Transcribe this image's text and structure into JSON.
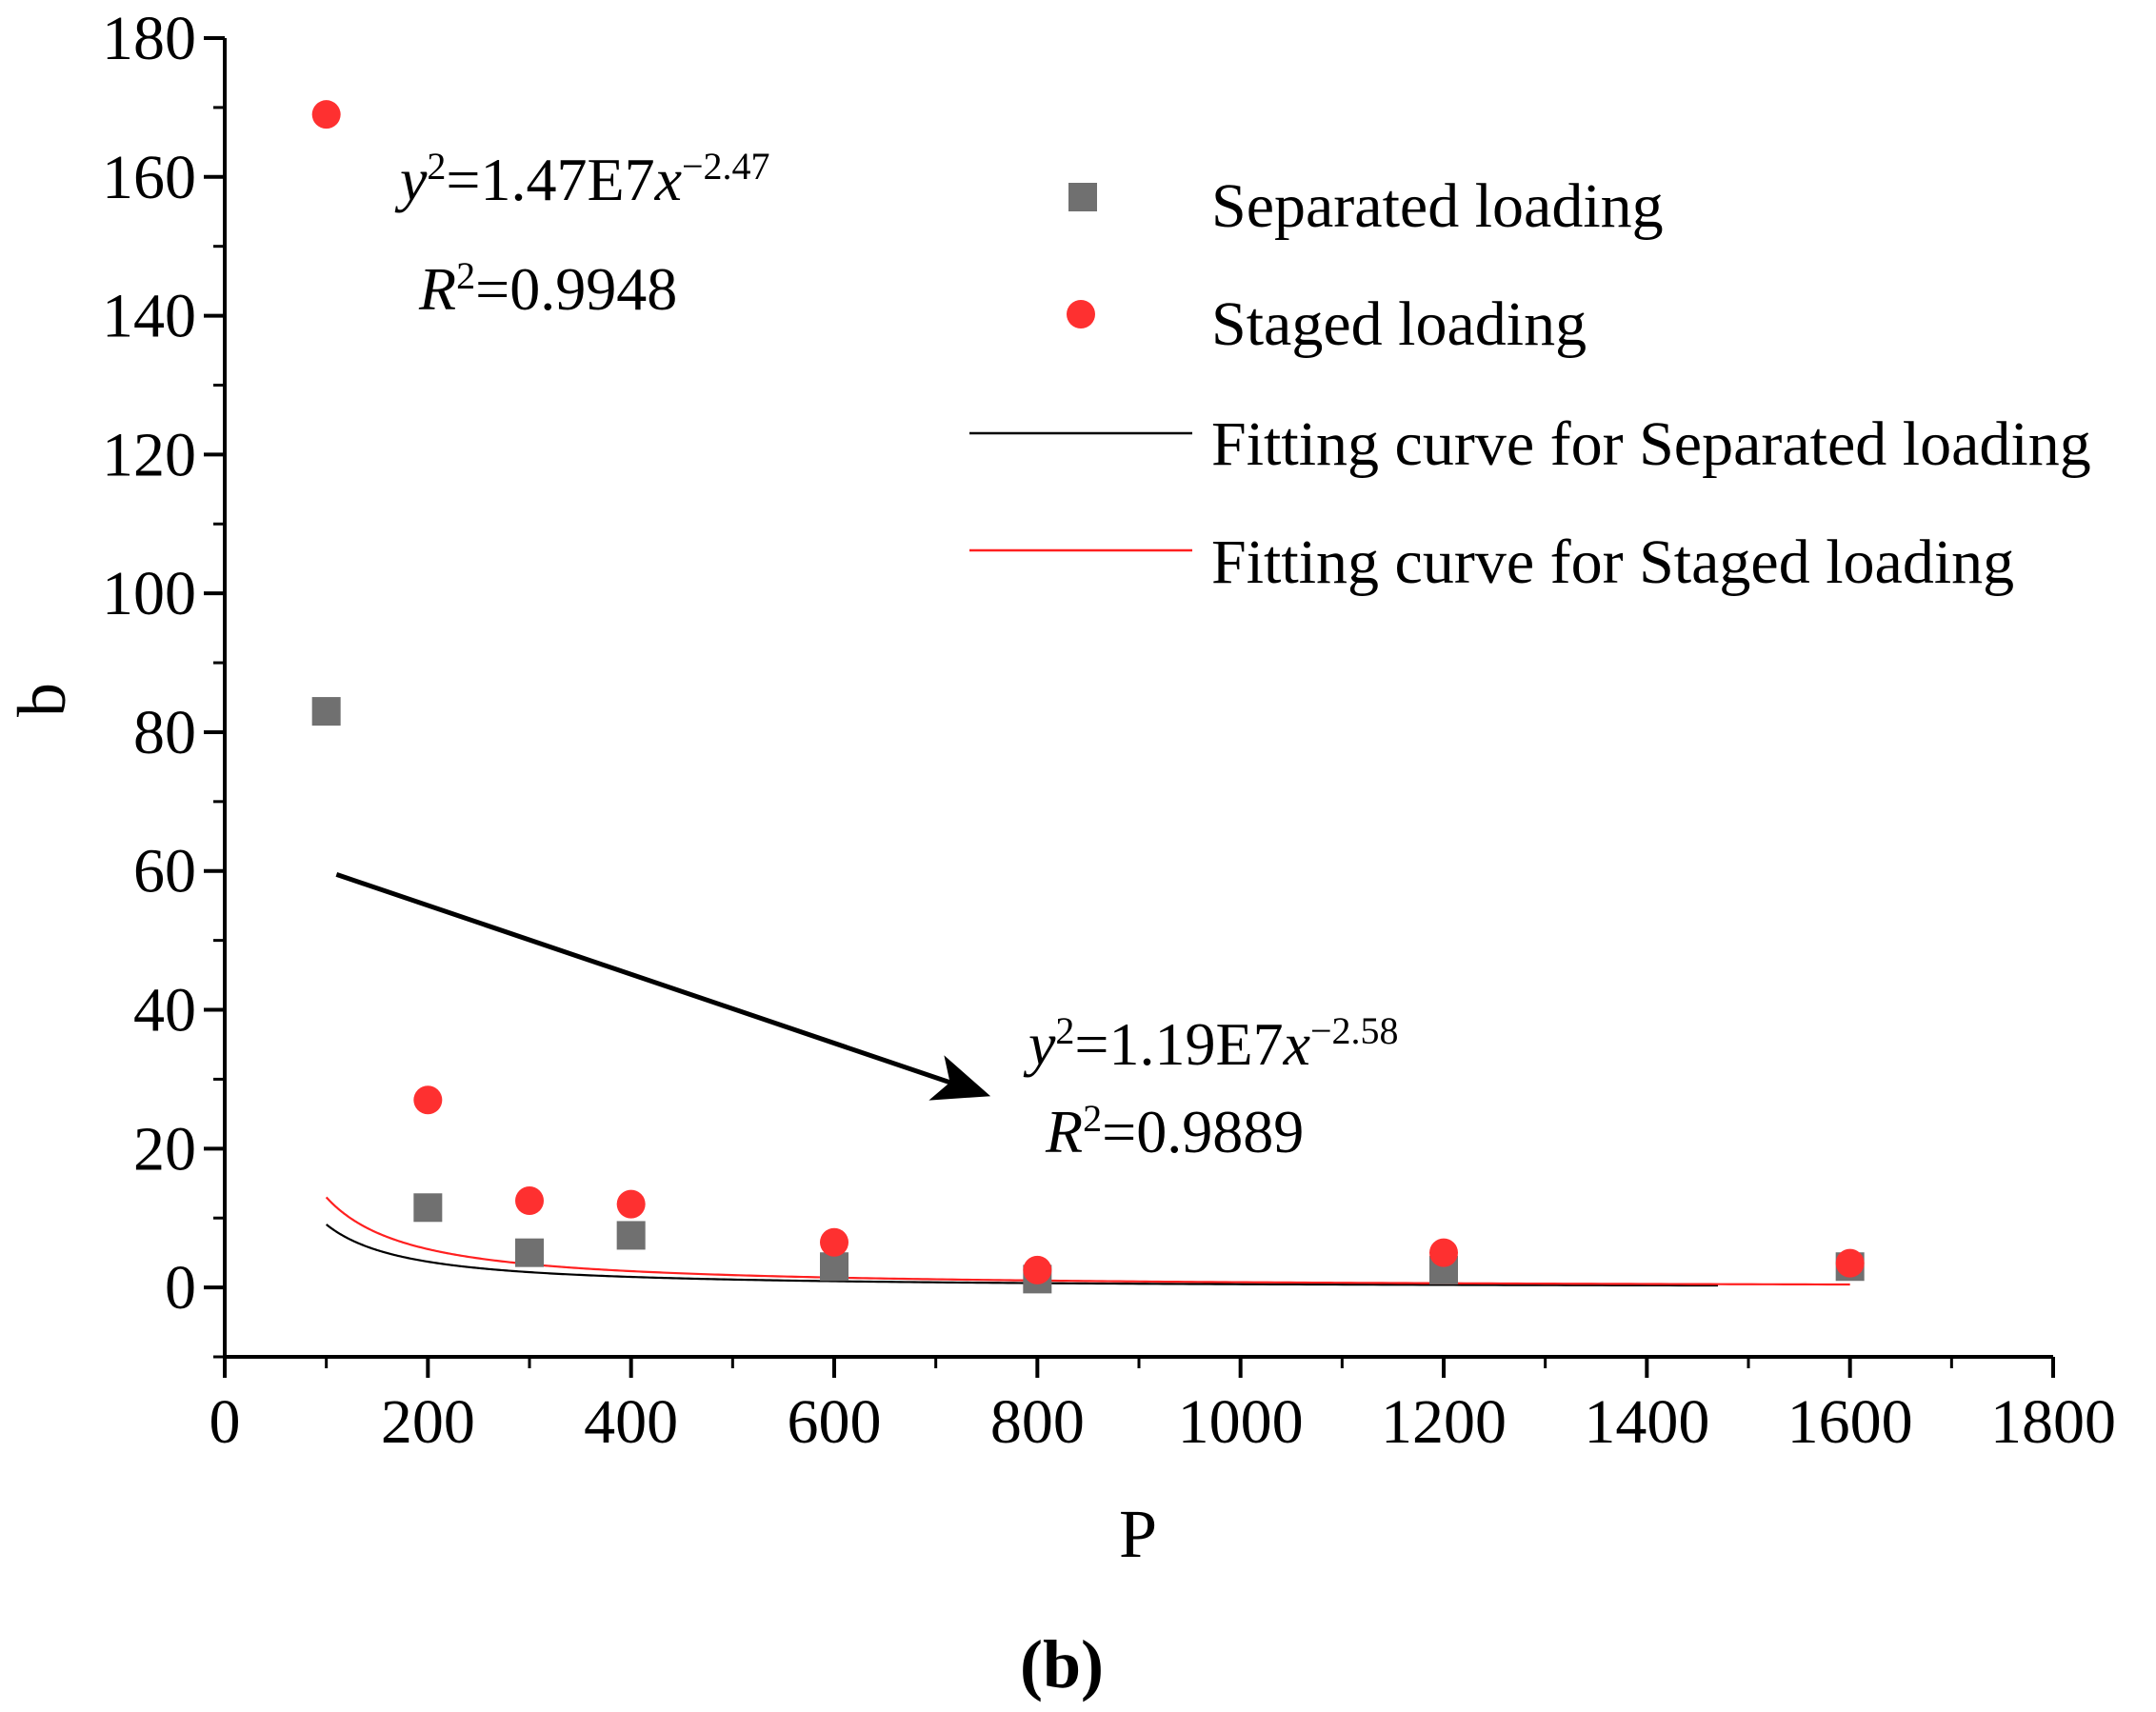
{
  "chart_data": {
    "type": "scatter",
    "panel_label": {
      "open": "(",
      "letter": "b",
      "close": ")"
    },
    "xlabel": "P",
    "ylabel": "b",
    "xlim": [
      0,
      1800
    ],
    "ylim": [
      -10,
      180
    ],
    "xticks": [
      0,
      200,
      400,
      600,
      800,
      1000,
      1200,
      1400,
      1600,
      1800
    ],
    "yticks": [
      0,
      20,
      40,
      60,
      80,
      100,
      120,
      140,
      160,
      180
    ],
    "xtick_labels": [
      "0",
      "200",
      "400",
      "600",
      "800",
      "1000",
      "1200",
      "1400",
      "1600",
      "1800"
    ],
    "ytick_labels": [
      "0",
      "20",
      "40",
      "60",
      "80",
      "100",
      "120",
      "140",
      "160",
      "180"
    ],
    "series": [
      {
        "name": "Separated loading",
        "marker": "square",
        "color": "#707070",
        "x": [
          100,
          200,
          300,
          400,
          600,
          800,
          1200,
          1600
        ],
        "y": [
          83,
          11.5,
          5,
          7.5,
          3,
          1.2,
          2.5,
          3
        ]
      },
      {
        "name": "Staged loading",
        "marker": "circle",
        "color": "#fe3030",
        "x": [
          100,
          200,
          300,
          400,
          600,
          800,
          1200,
          1600
        ],
        "y": [
          169,
          27,
          12.5,
          12,
          6.5,
          2.5,
          5,
          3.5
        ]
      }
    ],
    "fits": [
      {
        "name": "Fitting curve for Separated loading",
        "color": "#000000",
        "coef": 11900000,
        "exponent": -2.58,
        "x_range": [
          100,
          1470
        ],
        "equation": {
          "y": "y",
          "sup2": "2",
          "eq": "=1.19E7",
          "x": "x",
          "exp": "−2.58"
        },
        "r2": {
          "r": "R",
          "sup2": "2",
          "value": "=0.9889"
        }
      },
      {
        "name": "Fitting curve for Staged loading",
        "color": "#ff2020",
        "coef": 14700000,
        "exponent": -2.47,
        "x_range": [
          100,
          1600
        ],
        "equation": {
          "y": "y",
          "sup2": "2",
          "eq": "=1.47E7",
          "x": "x",
          "exp": "−2.47"
        },
        "r2": {
          "r": "R",
          "sup2": "2",
          "value": "=0.9948"
        }
      }
    ],
    "annotation_arrow": {
      "from": [
        110,
        59.5
      ],
      "to": [
        745,
        28
      ]
    },
    "legend": {
      "position": "top-right",
      "entries": [
        {
          "label": "Separated loading",
          "kind": "square",
          "color": "#707070"
        },
        {
          "label": "Staged loading",
          "kind": "circle",
          "color": "#fe3030"
        },
        {
          "label": "Fitting curve for Separated loading",
          "kind": "line",
          "color": "#000000"
        },
        {
          "label": "Fitting curve for Staged loading",
          "kind": "line",
          "color": "#ff2020"
        }
      ]
    }
  }
}
